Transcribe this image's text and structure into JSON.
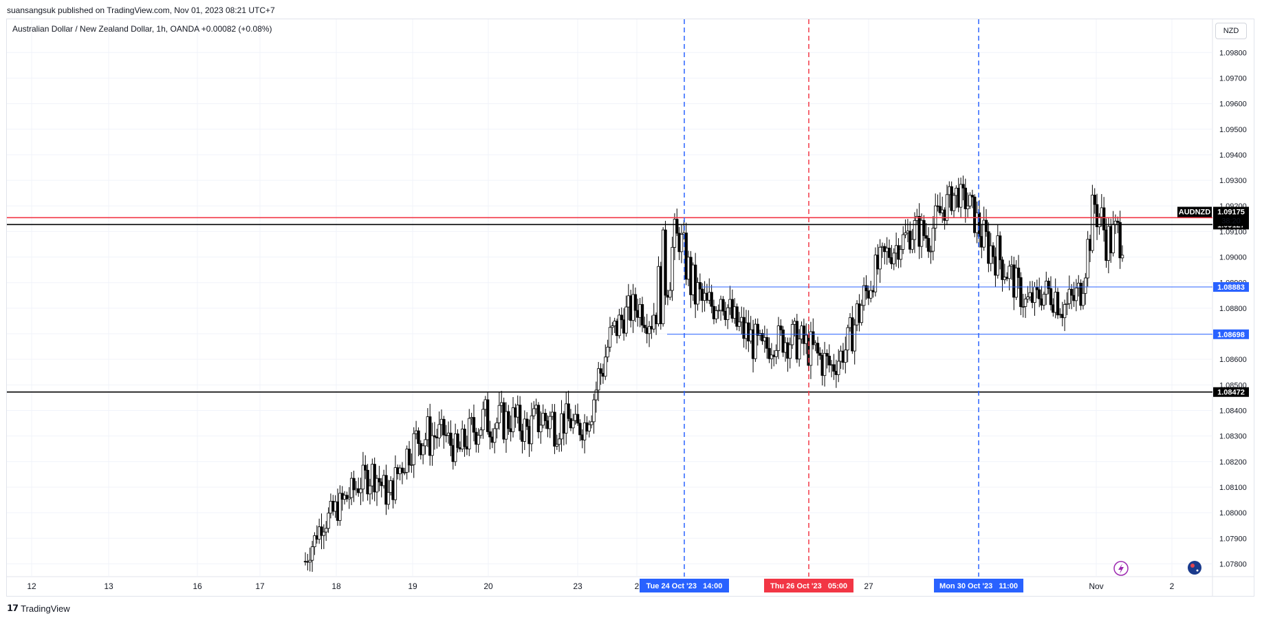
{
  "header": {
    "published_by": "suansangsuk published on TradingView.com, Nov 01, 2023 08:21 UTC+7"
  },
  "legend": {
    "symbol_line": "Australian Dollar / New Zealand Dollar, 1h, OANDA  +0.00082 (+0.08%)"
  },
  "currency_button": "NZD",
  "footer": {
    "logo_text": "TradingView"
  },
  "colors": {
    "candle_up": "#ffffff",
    "candle_border": "#000000",
    "red_line": "#f23645",
    "blue_line": "#2962ff",
    "black_line": "#000000"
  },
  "chart_data": {
    "type": "candlestick",
    "symbol": "AUDNZD",
    "ylim": [
      1.0775,
      1.0993
    ],
    "y_ticks": [
      "1.07800",
      "1.07900",
      "1.08000",
      "1.08100",
      "1.08200",
      "1.08300",
      "1.08400",
      "1.08500",
      "1.08600",
      "1.08700",
      "1.08800",
      "1.08900",
      "1.09000",
      "1.09100",
      "1.09200",
      "1.09300",
      "1.09400",
      "1.09500",
      "1.09600",
      "1.09700",
      "1.09800"
    ],
    "x_ticks": [
      "12",
      "13",
      "16",
      "17",
      "18",
      "19",
      "20",
      "23",
      "2",
      "27",
      "Nov",
      "2"
    ],
    "horizontal_lines": [
      {
        "label": "1.09154",
        "price": 1.09154,
        "color": "red"
      },
      {
        "label": "1.09127",
        "price": 1.09127,
        "color": "black"
      },
      {
        "label": "1.08883",
        "price": 1.08883,
        "color": "blue"
      },
      {
        "label": "1.08698",
        "price": 1.08698,
        "color": "blue"
      },
      {
        "label": "1.08472",
        "price": 1.08472,
        "color": "black"
      }
    ],
    "price_tag": {
      "symbol": "AUDNZD",
      "price": "1.09175",
      "countdown": "38:20"
    },
    "vertical_lines": [
      {
        "label": "Tue 24 Oct '23   14:00",
        "color": "blue"
      },
      {
        "label": "Thu 26 Oct '23   05:00",
        "color": "red"
      },
      {
        "label": "Mon 30 Oct '23   11:00",
        "color": "blue"
      }
    ],
    "price_path": [
      [
        1.0776,
        1.0786
      ],
      [
        1.079,
        1.0798
      ],
      [
        1.0794,
        1.0806
      ],
      [
        1.08,
        1.0812
      ],
      [
        1.0806,
        1.0818
      ],
      [
        1.0808,
        1.0824
      ],
      [
        1.08,
        1.0812
      ],
      [
        1.0812,
        1.0828
      ],
      [
        1.0822,
        1.0836
      ],
      [
        1.082,
        1.084
      ],
      [
        1.0826,
        1.0836
      ],
      [
        1.0816,
        1.083
      ],
      [
        1.0824,
        1.084
      ],
      [
        1.0828,
        1.0846
      ],
      [
        1.0826,
        1.0844
      ],
      [
        1.083,
        1.0844
      ],
      [
        1.0824,
        1.084
      ],
      [
        1.0828,
        1.0846
      ],
      [
        1.0826,
        1.0846
      ],
      [
        1.083,
        1.0842
      ],
      [
        1.0828,
        1.0836
      ],
      [
        1.0836,
        1.0862
      ],
      [
        1.086,
        1.0876
      ],
      [
        1.087,
        1.0884
      ],
      [
        1.0874,
        1.0888
      ],
      [
        1.0868,
        1.0884
      ],
      [
        1.0876,
        1.0916
      ],
      [
        1.09,
        1.0916
      ],
      [
        1.0876,
        1.0898
      ],
      [
        1.0868,
        1.089
      ],
      [
        1.0878,
        1.0894
      ],
      [
        1.0866,
        1.0882
      ],
      [
        1.086,
        1.0878
      ],
      [
        1.0856,
        1.087
      ],
      [
        1.0862,
        1.0874
      ],
      [
        1.086,
        1.0876
      ],
      [
        1.0858,
        1.0874
      ],
      [
        1.0852,
        1.087
      ],
      [
        1.085,
        1.0864
      ],
      [
        1.0858,
        1.087
      ],
      [
        1.0868,
        1.089
      ],
      [
        1.0886,
        1.09
      ],
      [
        1.0894,
        1.0908
      ],
      [
        1.09,
        1.0912
      ],
      [
        1.0904,
        1.0918
      ],
      [
        1.09,
        1.0916
      ],
      [
        1.0912,
        1.0926
      ],
      [
        1.092,
        1.093
      ],
      [
        1.0914,
        1.0926
      ],
      [
        1.0896,
        1.0916
      ],
      [
        1.0892,
        1.091
      ],
      [
        1.0884,
        1.09
      ],
      [
        1.0876,
        1.0888
      ],
      [
        1.088,
        1.089
      ],
      [
        1.0878,
        1.0896
      ],
      [
        1.087,
        1.089
      ],
      [
        1.088,
        1.0894
      ],
      [
        1.091,
        1.0932
      ],
      [
        1.0896,
        1.0916
      ],
      [
        1.09,
        1.092
      ]
    ]
  }
}
